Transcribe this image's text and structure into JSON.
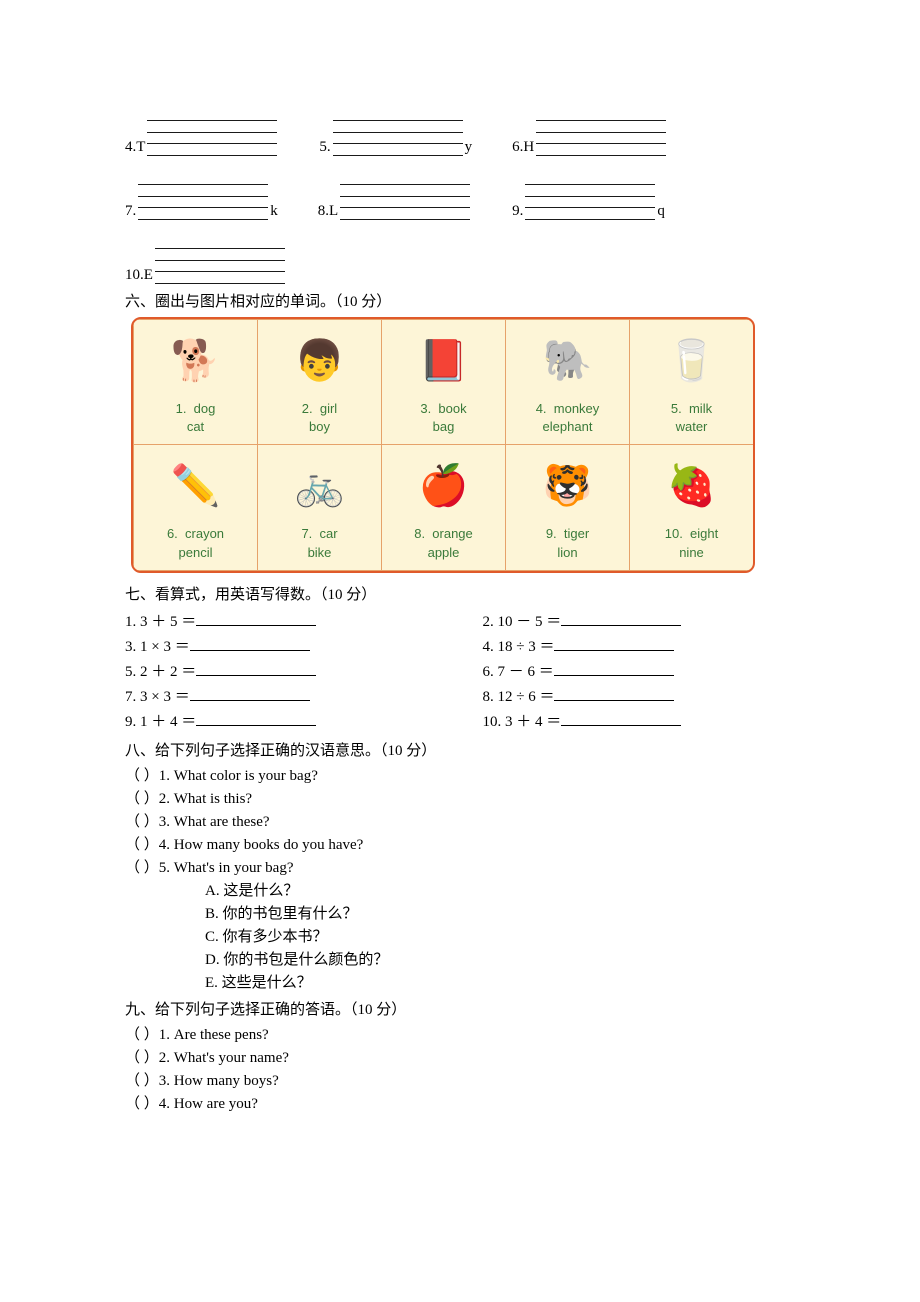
{
  "writing": {
    "items": [
      {
        "num": "4.",
        "pre": "T",
        "post": ""
      },
      {
        "num": "5.",
        "pre": "",
        "post": "y"
      },
      {
        "num": "6.",
        "pre": "H",
        "post": ""
      },
      {
        "num": "7.",
        "pre": "",
        "post": "k"
      },
      {
        "num": "8.",
        "pre": "L",
        "post": ""
      },
      {
        "num": "9.",
        "pre": "",
        "post": "q"
      },
      {
        "num": "10.",
        "pre": "E",
        "post": ""
      }
    ]
  },
  "section6": {
    "title": "六、圈出与图片相对应的单词。（10 分）",
    "cells": [
      {
        "glyph": "🐕",
        "num": "1.",
        "opt1": "dog",
        "opt2": "cat"
      },
      {
        "glyph": "👦",
        "num": "2.",
        "opt1": "girl",
        "opt2": "boy"
      },
      {
        "glyph": "📕",
        "num": "3.",
        "opt1": "book",
        "opt2": "bag"
      },
      {
        "glyph": "🐘",
        "num": "4.",
        "opt1": "monkey",
        "opt2": "elephant"
      },
      {
        "glyph": "🥛",
        "num": "5.",
        "opt1": "milk",
        "opt2": "water"
      },
      {
        "glyph": "✏️",
        "num": "6.",
        "opt1": "crayon",
        "opt2": "pencil"
      },
      {
        "glyph": "🚲",
        "num": "7.",
        "opt1": "car",
        "opt2": "bike"
      },
      {
        "glyph": "🍎",
        "num": "8.",
        "opt1": "orange",
        "opt2": "apple"
      },
      {
        "glyph": "🐯",
        "num": "9.",
        "opt1": "tiger",
        "opt2": "lion"
      },
      {
        "glyph": "🍓",
        "num": "10.",
        "opt1": "eight",
        "opt2": "nine"
      }
    ]
  },
  "section7": {
    "title": "七、看算式，用英语写得数。（10 分）",
    "items": [
      "1. 3 ＋ 5 ＝",
      "2. 10 － 5 ＝",
      "3. 1 × 3 ＝",
      "4. 18 ÷ 3 ＝",
      "5. 2 ＋ 2 ＝",
      "6. 7 － 6 ＝",
      "7. 3 × 3 ＝",
      "8. 12 ÷ 6 ＝",
      "9. 1 ＋ 4 ＝",
      "10. 3 ＋ 4 ＝"
    ]
  },
  "section8": {
    "title": "八、给下列句子选择正确的汉语意思。（10 分）",
    "questions": [
      "（    ）1. What color is your bag?",
      "（    ）2. What is this?",
      "（    ）3. What are these?",
      "（    ）4. How many books do you have?",
      "（    ）5. What's in your bag?"
    ],
    "choices": [
      "A. 这是什么？",
      "B. 你的书包里有什么？",
      "C. 你有多少本书？",
      "D. 你的书包是什么颜色的？",
      "E. 这些是什么？"
    ]
  },
  "section9": {
    "title": "九、给下列句子选择正确的答语。（10 分）",
    "questions": [
      "（    ）1. Are these pens?",
      "（    ）2. What's your name?",
      "（    ）3. How many boys?",
      "（    ）4. How are you?"
    ]
  }
}
